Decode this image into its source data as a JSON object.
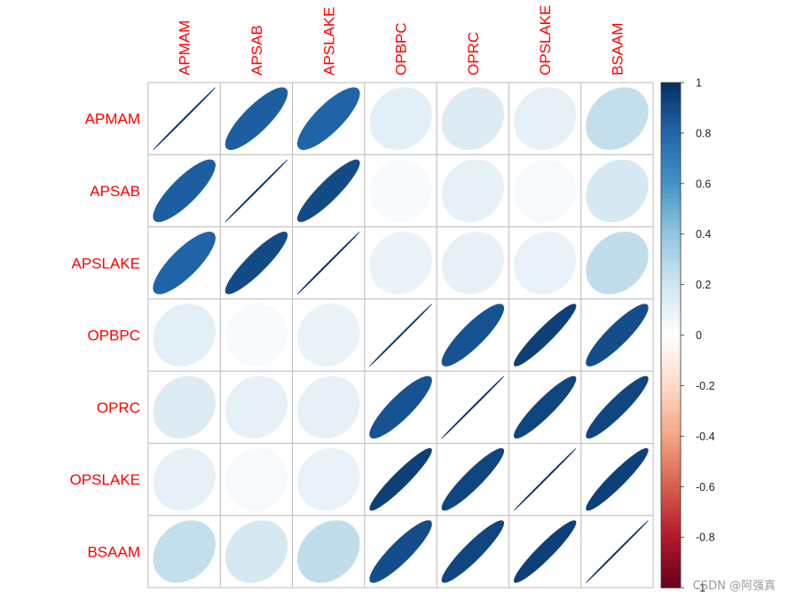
{
  "chart_data": {
    "type": "heatmap",
    "method": "ellipse",
    "title": "",
    "variables": [
      "APMAM",
      "APSAB",
      "APSLAKE",
      "OPBPC",
      "OPRC",
      "OPSLAKE",
      "BSAAM"
    ],
    "matrix": [
      [
        1.0,
        0.83,
        0.81,
        0.12,
        0.15,
        0.11,
        0.24
      ],
      [
        0.83,
        1.0,
        0.9,
        0.03,
        0.11,
        0.04,
        0.18
      ],
      [
        0.81,
        0.9,
        1.0,
        0.09,
        0.11,
        0.1,
        0.25
      ],
      [
        0.12,
        0.03,
        0.09,
        1.0,
        0.87,
        0.94,
        0.89
      ],
      [
        0.15,
        0.11,
        0.11,
        0.87,
        1.0,
        0.92,
        0.92
      ],
      [
        0.11,
        0.04,
        0.1,
        0.94,
        0.92,
        1.0,
        0.94
      ],
      [
        0.24,
        0.18,
        0.25,
        0.89,
        0.92,
        0.94,
        1.0
      ]
    ],
    "color_scale": {
      "range": [
        -1,
        1
      ],
      "ticks": [
        "1",
        "0.8",
        "0.6",
        "0.4",
        "0.2",
        "0",
        "-0.2",
        "-0.4",
        "-0.6",
        "-0.8",
        "-1"
      ],
      "colors": [
        "#67001F",
        "#B2182B",
        "#D6604D",
        "#F4A582",
        "#FDDBC7",
        "#FFFFFF",
        "#D1E5F0",
        "#92C5DE",
        "#4393C3",
        "#2166AC",
        "#053061"
      ]
    },
    "label_color": "#FF0000",
    "grid_color": "#BEBEBE",
    "legend_position": "right"
  },
  "watermark": "CSDN @阿强真"
}
